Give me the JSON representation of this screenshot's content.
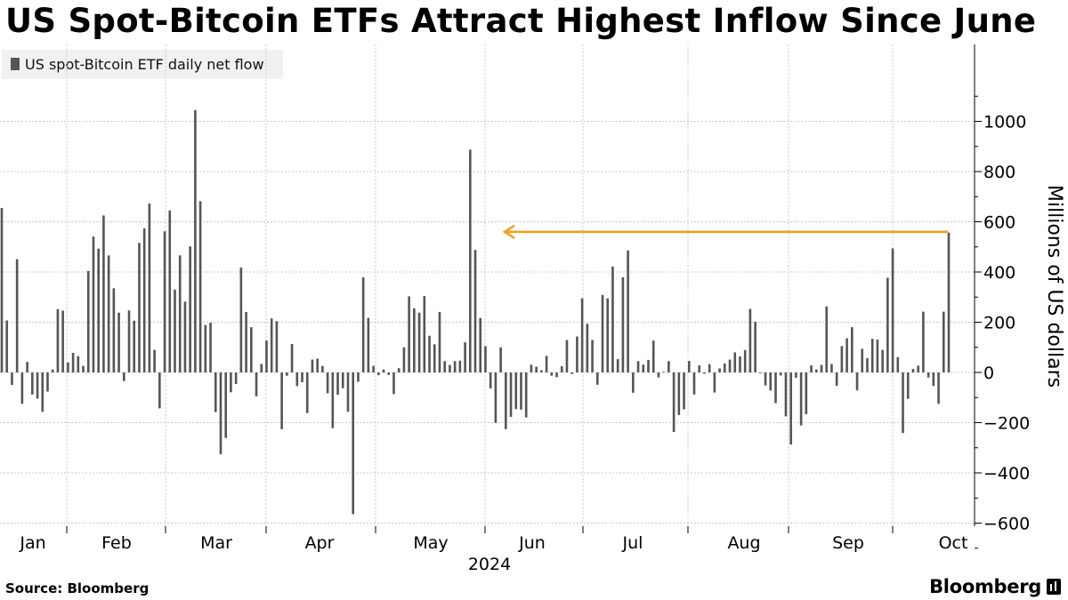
{
  "title": "US Spot-Bitcoin ETFs Attract Highest Inflow Since June",
  "source": "Source: Bloomberg",
  "brand": "Bloomberg",
  "colors": {
    "bar": "#555555",
    "arrow": "#f0a020",
    "grid": "#c8c8c8",
    "axis": "#000000"
  },
  "chart_data": {
    "type": "bar",
    "title": "US Spot-Bitcoin ETFs Attract Highest Inflow Since June",
    "legend": [
      "US spot-Bitcoin ETF daily net flow"
    ],
    "legend_position": "top-left",
    "ylabel": "Millions of US dollars",
    "xlabel": "2024",
    "ylim": [
      -700,
      1200
    ],
    "yticks": [
      1000,
      800,
      600,
      400,
      200,
      0,
      -200,
      -400,
      -600
    ],
    "ytick_labels": [
      "1000",
      "800",
      "600",
      "400",
      "200",
      "0",
      "−200",
      "−400",
      "−600"
    ],
    "months": [
      "Jan",
      "Feb",
      "Mar",
      "Apr",
      "May",
      "Jun",
      "Jul",
      "Aug",
      "Sep",
      "Oct"
    ],
    "grid": true,
    "annotation": {
      "type": "arrow",
      "value": 560,
      "description": "arrow from latest bar back to June peak"
    },
    "series": [
      {
        "name": "US spot-Bitcoin ETF daily net flow",
        "values": [
          655,
          207,
          -50,
          451,
          -125,
          42,
          -88,
          -104,
          -157,
          -76,
          12,
          252,
          246,
          40,
          78,
          65,
          26,
          404,
          541,
          493,
          625,
          466,
          335,
          238,
          -34,
          247,
          206,
          516,
          574,
          673,
          90,
          -143,
          562,
          645,
          330,
          466,
          282,
          502,
          1045,
          682,
          189,
          198,
          -158,
          -326,
          -261,
          -79,
          -46,
          418,
          241,
          180,
          -95,
          34,
          127,
          215,
          204,
          -226,
          -13,
          113,
          -54,
          -39,
          -162,
          51,
          55,
          26,
          -83,
          -222,
          -89,
          -63,
          -157,
          -564,
          -37,
          379,
          217,
          26,
          -11,
          12,
          -10,
          -86,
          17,
          100,
          303,
          255,
          238,
          304,
          146,
          112,
          241,
          45,
          30,
          45,
          47,
          120,
          887,
          488,
          217,
          105,
          -64,
          -201,
          100,
          -226,
          -177,
          -146,
          -148,
          -179,
          31,
          23,
          9,
          66,
          -13,
          -19,
          25,
          129,
          -6,
          143,
          295,
          194,
          129,
          -49,
          309,
          295,
          422,
          53,
          379,
          486,
          -81,
          45,
          31,
          50,
          127,
          -20,
          3,
          45,
          -237,
          -170,
          -147,
          46,
          -88,
          28,
          -5,
          33,
          -80,
          16,
          36,
          51,
          80,
          64,
          89,
          253,
          202,
          -3,
          -52,
          -72,
          -122,
          -12,
          -175,
          -287,
          -21,
          -211,
          -166,
          28,
          12,
          30,
          263,
          34,
          -53,
          105,
          136,
          180,
          -71,
          94,
          57,
          134,
          131,
          90,
          377,
          494,
          61,
          -241,
          -105,
          14,
          27,
          242,
          -20,
          -54,
          -125,
          242,
          557
        ]
      }
    ]
  }
}
